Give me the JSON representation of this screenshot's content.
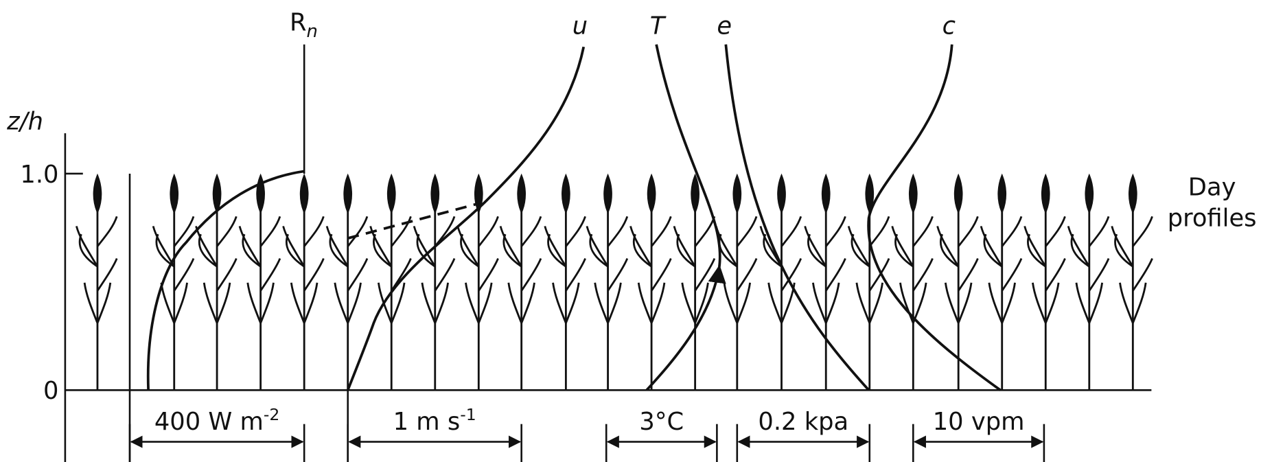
{
  "axis": {
    "label": "z/h",
    "ticks": [
      "1.0",
      "0"
    ]
  },
  "curves": [
    {
      "label": "R",
      "sub": "n"
    },
    {
      "label": "u"
    },
    {
      "label": "T"
    },
    {
      "label": "e"
    },
    {
      "label": "c"
    }
  ],
  "scales": [
    {
      "text": "400 W m",
      "sup": "-2"
    },
    {
      "text": "1 m s",
      "sup": "-1"
    },
    {
      "text": "3°C"
    },
    {
      "text": "0.2 kpa"
    },
    {
      "text": "10 vpm"
    }
  ],
  "note": [
    "Day",
    "profiles"
  ]
}
